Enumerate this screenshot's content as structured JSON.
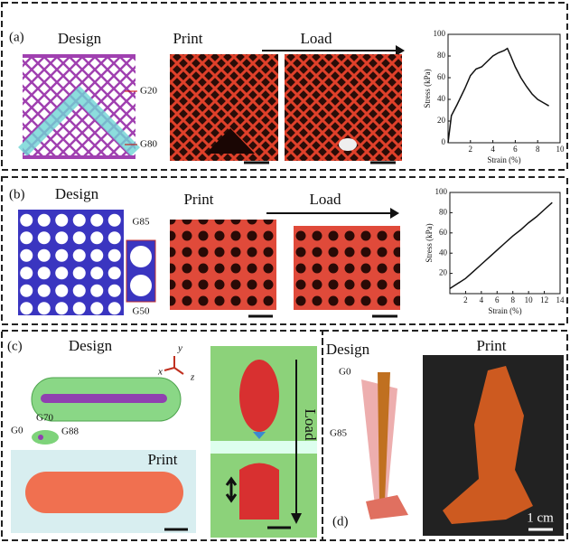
{
  "chart_data": [
    {
      "type": "line",
      "xlabel": "Strain (%)",
      "ylabel": "Stress (kPa)",
      "color": "#111111",
      "x": [
        0,
        0.3,
        0.8,
        1.5,
        2,
        2.5,
        3,
        3.5,
        4,
        4.5,
        5,
        5.3,
        5.6,
        6,
        6.5,
        7,
        7.5,
        8,
        8.5,
        9
      ],
      "values": [
        0,
        25,
        35,
        50,
        62,
        68,
        70,
        75,
        80,
        83,
        85,
        87,
        80,
        70,
        60,
        52,
        45,
        40,
        37,
        34
      ],
      "xlim": [
        0,
        10
      ],
      "xticks": [
        2,
        4,
        6,
        8,
        10
      ],
      "ylim": [
        0,
        100
      ],
      "yticks": [
        0,
        20,
        40,
        60,
        80,
        100
      ]
    },
    {
      "type": "line",
      "xlabel": "Strain (%)",
      "ylabel": "Stress (kPa)",
      "color": "#111111",
      "x": [
        0,
        1,
        2,
        3,
        4,
        5,
        6,
        7,
        8,
        9,
        10,
        11,
        12,
        13
      ],
      "values": [
        5,
        10,
        15,
        22,
        29,
        36,
        43,
        50,
        57,
        63,
        70,
        76,
        83,
        90
      ],
      "xlim": [
        0,
        14
      ],
      "xticks": [
        2,
        4,
        6,
        8,
        10,
        12,
        14
      ],
      "ylim": [
        0,
        100
      ],
      "yticks": [
        20,
        40,
        60,
        80,
        100
      ]
    }
  ],
  "panels": {
    "a": {
      "label": "(a)",
      "design": "Design",
      "print": "Print",
      "load": "Load",
      "top": "G20",
      "bottom": "G80"
    },
    "b": {
      "label": "(b)",
      "design": "Design",
      "print": "Print",
      "load": "Load",
      "top": "G85",
      "bottom": "G50"
    },
    "c": {
      "label": "(c)",
      "design": "Design",
      "axes": [
        "x",
        "y",
        "z"
      ],
      "g0": "G0",
      "g70": "G70",
      "g88": "G88",
      "print": "Print",
      "load": "Load"
    },
    "d": {
      "label": "(d)",
      "design": "Design",
      "print": "Print",
      "g0": "G0",
      "g85": "G85",
      "scale": "1 cm"
    }
  }
}
